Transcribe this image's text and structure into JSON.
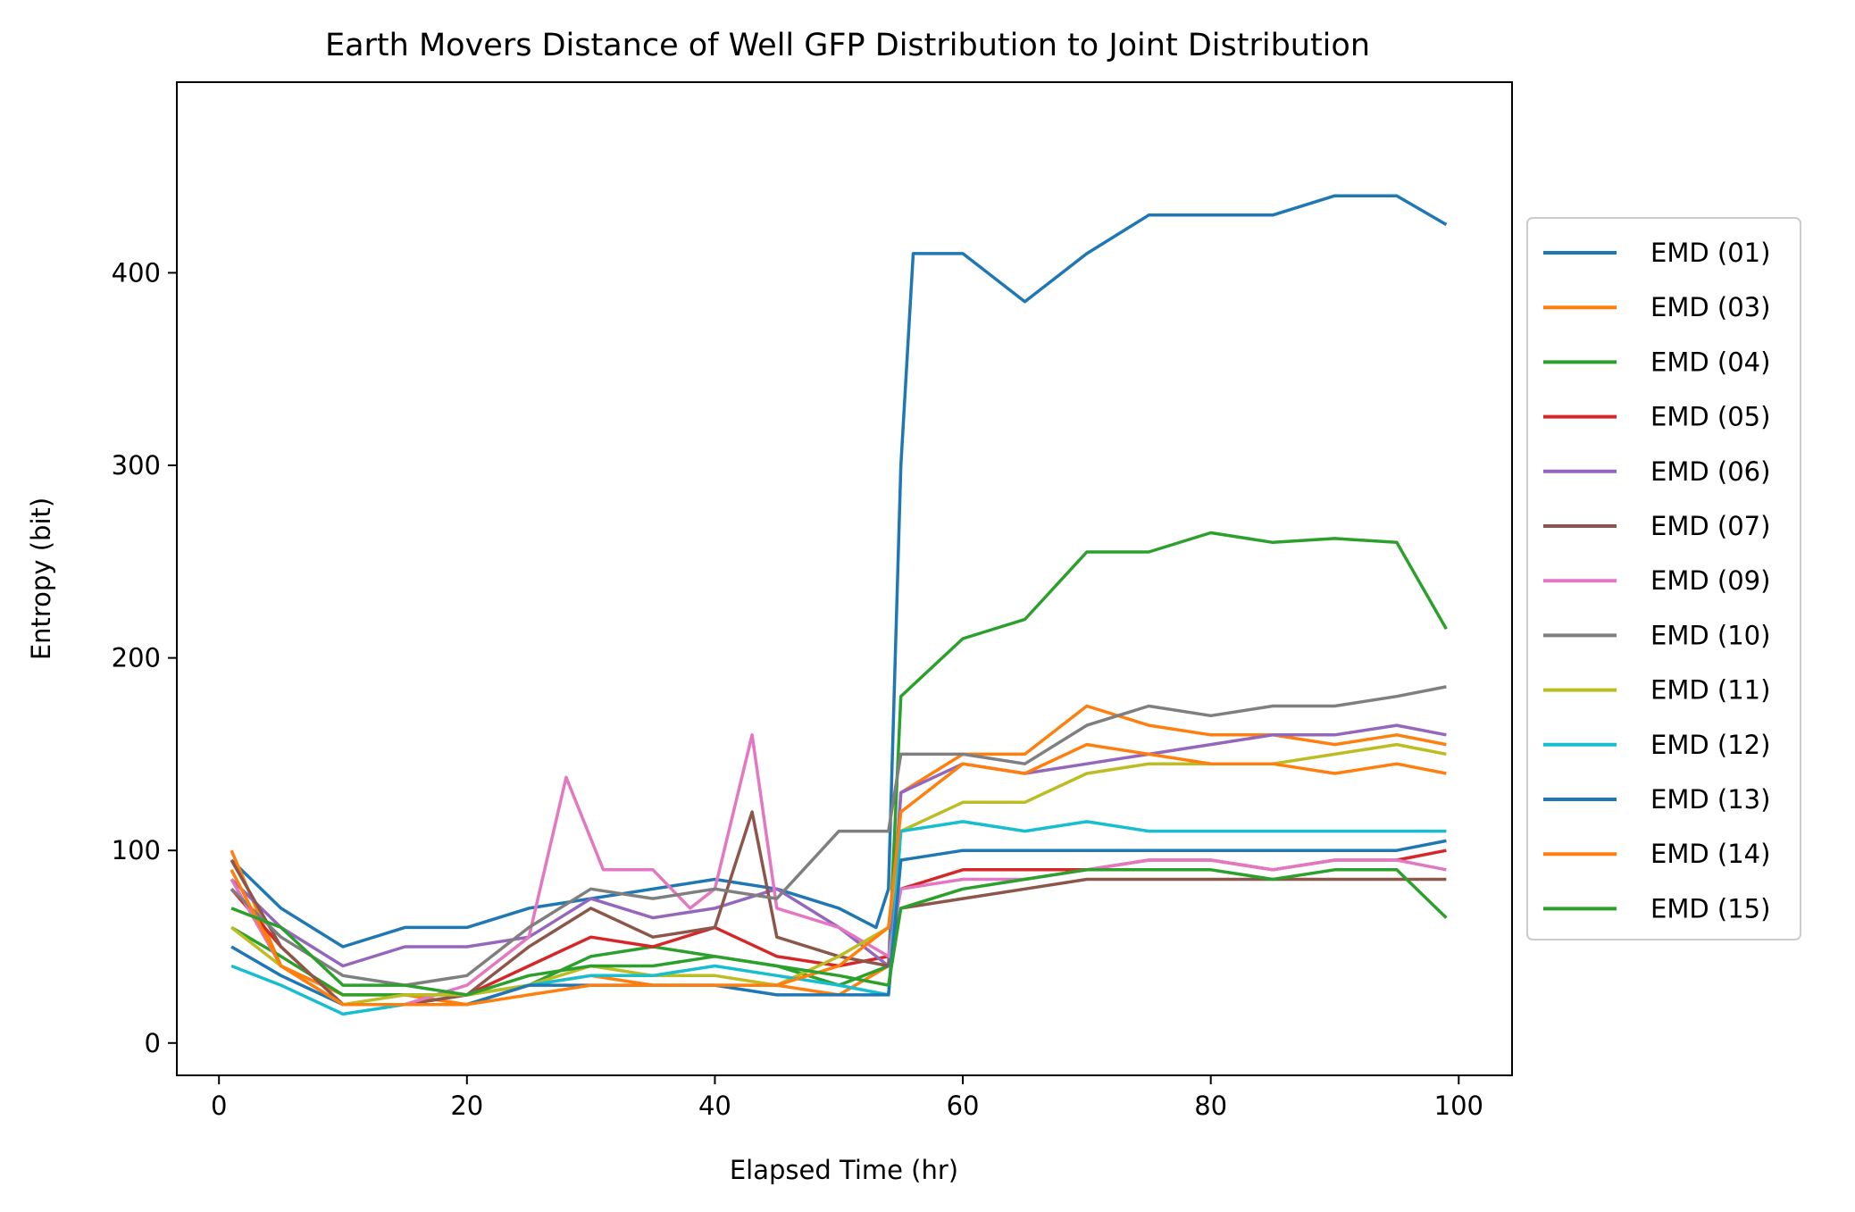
{
  "chart_data": {
    "type": "line",
    "title": "Earth Movers Distance of Well GFP Distribution to Joint Distribution",
    "xlabel": "Elapsed Time (hr)",
    "ylabel": "Entropy (bit)",
    "xlim": [
      -3.4,
      104.3
    ],
    "ylim": [
      -16.8,
      499
    ],
    "xticks": [
      0,
      20,
      40,
      60,
      80,
      100
    ],
    "yticks": [
      0,
      100,
      200,
      300,
      400
    ],
    "xtick_labels": [
      "0",
      "20",
      "40",
      "60",
      "80",
      "100"
    ],
    "ytick_labels": [
      "0",
      "100",
      "200",
      "300",
      "400"
    ],
    "grid": false,
    "legend_position": "outside right",
    "series": [
      {
        "name": "EMD (01)",
        "color": "#1f77b4",
        "points": [
          [
            1,
            95
          ],
          [
            5,
            70
          ],
          [
            10,
            50
          ],
          [
            15,
            60
          ],
          [
            20,
            60
          ],
          [
            25,
            70
          ],
          [
            30,
            75
          ],
          [
            35,
            80
          ],
          [
            40,
            85
          ],
          [
            45,
            80
          ],
          [
            50,
            70
          ],
          [
            53,
            60
          ],
          [
            54,
            80
          ],
          [
            55,
            300
          ],
          [
            56,
            410
          ],
          [
            60,
            410
          ],
          [
            65,
            385
          ],
          [
            70,
            410
          ],
          [
            75,
            430
          ],
          [
            80,
            430
          ],
          [
            85,
            430
          ],
          [
            90,
            440
          ],
          [
            95,
            440
          ],
          [
            99,
            425
          ]
        ]
      },
      {
        "name": "EMD (03)",
        "color": "#ff7f0e",
        "points": [
          [
            1,
            100
          ],
          [
            5,
            40
          ],
          [
            10,
            25
          ],
          [
            15,
            25
          ],
          [
            20,
            20
          ],
          [
            25,
            30
          ],
          [
            30,
            35
          ],
          [
            35,
            30
          ],
          [
            40,
            30
          ],
          [
            45,
            30
          ],
          [
            50,
            25
          ],
          [
            54,
            40
          ],
          [
            55,
            130
          ],
          [
            60,
            150
          ],
          [
            65,
            150
          ],
          [
            70,
            175
          ],
          [
            75,
            165
          ],
          [
            80,
            160
          ],
          [
            85,
            160
          ],
          [
            90,
            155
          ],
          [
            95,
            160
          ],
          [
            99,
            155
          ]
        ]
      },
      {
        "name": "EMD (04)",
        "color": "#2ca02c",
        "points": [
          [
            1,
            60
          ],
          [
            5,
            45
          ],
          [
            10,
            25
          ],
          [
            15,
            25
          ],
          [
            20,
            25
          ],
          [
            25,
            30
          ],
          [
            30,
            45
          ],
          [
            35,
            50
          ],
          [
            40,
            45
          ],
          [
            45,
            40
          ],
          [
            50,
            30
          ],
          [
            54,
            40
          ],
          [
            55,
            180
          ],
          [
            60,
            210
          ],
          [
            65,
            220
          ],
          [
            70,
            255
          ],
          [
            75,
            255
          ],
          [
            80,
            265
          ],
          [
            85,
            260
          ],
          [
            90,
            262
          ],
          [
            95,
            260
          ],
          [
            99,
            215
          ]
        ]
      },
      {
        "name": "EMD (05)",
        "color": "#d62728",
        "points": [
          [
            1,
            80
          ],
          [
            5,
            50
          ],
          [
            10,
            20
          ],
          [
            15,
            20
          ],
          [
            20,
            25
          ],
          [
            25,
            40
          ],
          [
            30,
            55
          ],
          [
            35,
            50
          ],
          [
            40,
            60
          ],
          [
            45,
            45
          ],
          [
            50,
            40
          ],
          [
            54,
            45
          ],
          [
            55,
            80
          ],
          [
            60,
            90
          ],
          [
            65,
            90
          ],
          [
            70,
            90
          ],
          [
            75,
            95
          ],
          [
            80,
            95
          ],
          [
            85,
            90
          ],
          [
            90,
            95
          ],
          [
            95,
            95
          ],
          [
            99,
            100
          ]
        ]
      },
      {
        "name": "EMD (06)",
        "color": "#9467bd",
        "points": [
          [
            1,
            85
          ],
          [
            5,
            60
          ],
          [
            10,
            40
          ],
          [
            15,
            50
          ],
          [
            20,
            50
          ],
          [
            25,
            55
          ],
          [
            30,
            75
          ],
          [
            35,
            65
          ],
          [
            40,
            70
          ],
          [
            45,
            80
          ],
          [
            50,
            60
          ],
          [
            54,
            40
          ],
          [
            55,
            130
          ],
          [
            60,
            145
          ],
          [
            65,
            140
          ],
          [
            70,
            145
          ],
          [
            75,
            150
          ],
          [
            80,
            155
          ],
          [
            85,
            160
          ],
          [
            90,
            160
          ],
          [
            95,
            165
          ],
          [
            99,
            160
          ]
        ]
      },
      {
        "name": "EMD (07)",
        "color": "#8c564b",
        "points": [
          [
            1,
            95
          ],
          [
            5,
            50
          ],
          [
            10,
            20
          ],
          [
            15,
            20
          ],
          [
            20,
            25
          ],
          [
            25,
            50
          ],
          [
            30,
            70
          ],
          [
            35,
            55
          ],
          [
            40,
            60
          ],
          [
            43,
            120
          ],
          [
            45,
            55
          ],
          [
            50,
            45
          ],
          [
            54,
            40
          ],
          [
            55,
            70
          ],
          [
            60,
            75
          ],
          [
            65,
            80
          ],
          [
            70,
            85
          ],
          [
            75,
            85
          ],
          [
            80,
            85
          ],
          [
            85,
            85
          ],
          [
            90,
            85
          ],
          [
            95,
            85
          ],
          [
            99,
            85
          ]
        ]
      },
      {
        "name": "EMD (09)",
        "color": "#e377c2",
        "points": [
          [
            1,
            85
          ],
          [
            5,
            40
          ],
          [
            10,
            20
          ],
          [
            15,
            20
          ],
          [
            20,
            30
          ],
          [
            25,
            55
          ],
          [
            28,
            138
          ],
          [
            31,
            90
          ],
          [
            35,
            90
          ],
          [
            38,
            70
          ],
          [
            40,
            80
          ],
          [
            43,
            160
          ],
          [
            45,
            70
          ],
          [
            50,
            60
          ],
          [
            54,
            45
          ],
          [
            55,
            80
          ],
          [
            60,
            85
          ],
          [
            65,
            85
          ],
          [
            70,
            90
          ],
          [
            75,
            95
          ],
          [
            80,
            95
          ],
          [
            85,
            90
          ],
          [
            90,
            95
          ],
          [
            95,
            95
          ],
          [
            99,
            90
          ]
        ]
      },
      {
        "name": "EMD (10)",
        "color": "#7f7f7f",
        "points": [
          [
            1,
            80
          ],
          [
            5,
            55
          ],
          [
            10,
            35
          ],
          [
            15,
            30
          ],
          [
            20,
            35
          ],
          [
            25,
            60
          ],
          [
            30,
            80
          ],
          [
            35,
            75
          ],
          [
            40,
            80
          ],
          [
            45,
            75
          ],
          [
            50,
            110
          ],
          [
            54,
            110
          ],
          [
            55,
            150
          ],
          [
            60,
            150
          ],
          [
            65,
            145
          ],
          [
            70,
            165
          ],
          [
            75,
            175
          ],
          [
            80,
            170
          ],
          [
            85,
            175
          ],
          [
            90,
            175
          ],
          [
            95,
            180
          ],
          [
            99,
            185
          ]
        ]
      },
      {
        "name": "EMD (11)",
        "color": "#bcbd22",
        "points": [
          [
            1,
            60
          ],
          [
            5,
            40
          ],
          [
            10,
            20
          ],
          [
            15,
            25
          ],
          [
            20,
            25
          ],
          [
            25,
            30
          ],
          [
            30,
            40
          ],
          [
            35,
            35
          ],
          [
            40,
            35
          ],
          [
            45,
            30
          ],
          [
            50,
            45
          ],
          [
            54,
            60
          ],
          [
            55,
            110
          ],
          [
            60,
            125
          ],
          [
            65,
            125
          ],
          [
            70,
            140
          ],
          [
            75,
            145
          ],
          [
            80,
            145
          ],
          [
            85,
            145
          ],
          [
            90,
            150
          ],
          [
            95,
            155
          ],
          [
            99,
            150
          ]
        ]
      },
      {
        "name": "EMD (12)",
        "color": "#17becf",
        "points": [
          [
            1,
            40
          ],
          [
            5,
            30
          ],
          [
            10,
            15
          ],
          [
            15,
            20
          ],
          [
            20,
            20
          ],
          [
            25,
            30
          ],
          [
            30,
            35
          ],
          [
            35,
            35
          ],
          [
            40,
            40
          ],
          [
            45,
            35
          ],
          [
            50,
            30
          ],
          [
            54,
            25
          ],
          [
            55,
            110
          ],
          [
            60,
            115
          ],
          [
            65,
            110
          ],
          [
            70,
            115
          ],
          [
            75,
            110
          ],
          [
            80,
            110
          ],
          [
            85,
            110
          ],
          [
            90,
            110
          ],
          [
            95,
            110
          ],
          [
            99,
            110
          ]
        ]
      },
      {
        "name": "EMD (13)",
        "color": "#1f77b4",
        "points": [
          [
            1,
            50
          ],
          [
            5,
            35
          ],
          [
            10,
            20
          ],
          [
            15,
            20
          ],
          [
            20,
            20
          ],
          [
            25,
            30
          ],
          [
            30,
            30
          ],
          [
            35,
            30
          ],
          [
            40,
            30
          ],
          [
            45,
            25
          ],
          [
            50,
            25
          ],
          [
            54,
            25
          ],
          [
            55,
            95
          ],
          [
            60,
            100
          ],
          [
            65,
            100
          ],
          [
            70,
            100
          ],
          [
            75,
            100
          ],
          [
            80,
            100
          ],
          [
            85,
            100
          ],
          [
            90,
            100
          ],
          [
            95,
            100
          ],
          [
            99,
            105
          ]
        ]
      },
      {
        "name": "EMD (14)",
        "color": "#ff7f0e",
        "points": [
          [
            1,
            90
          ],
          [
            5,
            40
          ],
          [
            10,
            20
          ],
          [
            15,
            20
          ],
          [
            20,
            20
          ],
          [
            25,
            25
          ],
          [
            30,
            30
          ],
          [
            35,
            30
          ],
          [
            40,
            30
          ],
          [
            45,
            30
          ],
          [
            50,
            40
          ],
          [
            54,
            60
          ],
          [
            55,
            120
          ],
          [
            60,
            145
          ],
          [
            65,
            140
          ],
          [
            70,
            155
          ],
          [
            75,
            150
          ],
          [
            80,
            145
          ],
          [
            85,
            145
          ],
          [
            90,
            140
          ],
          [
            95,
            145
          ],
          [
            99,
            140
          ]
        ]
      },
      {
        "name": "EMD (15)",
        "color": "#2ca02c",
        "points": [
          [
            1,
            70
          ],
          [
            5,
            60
          ],
          [
            10,
            30
          ],
          [
            15,
            30
          ],
          [
            20,
            25
          ],
          [
            25,
            35
          ],
          [
            30,
            40
          ],
          [
            35,
            40
          ],
          [
            40,
            45
          ],
          [
            45,
            40
          ],
          [
            50,
            35
          ],
          [
            54,
            30
          ],
          [
            55,
            70
          ],
          [
            60,
            80
          ],
          [
            65,
            85
          ],
          [
            70,
            90
          ],
          [
            75,
            90
          ],
          [
            80,
            90
          ],
          [
            85,
            85
          ],
          [
            90,
            90
          ],
          [
            95,
            90
          ],
          [
            99,
            65
          ]
        ]
      }
    ]
  }
}
